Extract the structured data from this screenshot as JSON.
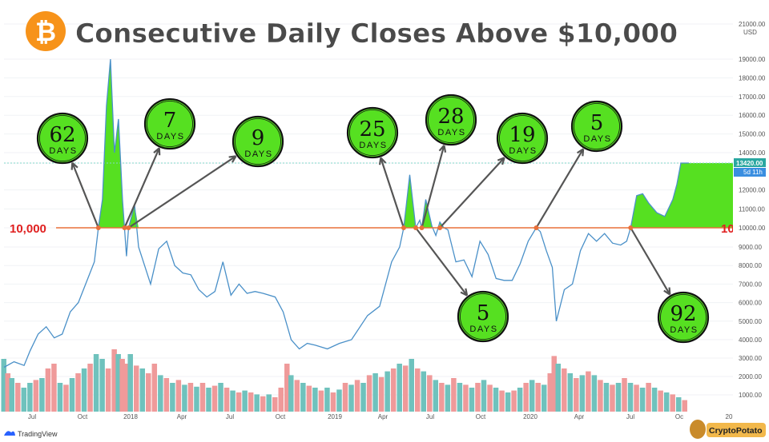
{
  "title": "Consecutive Daily Closes Above $10,000",
  "brand": {
    "bitcoin_symbol": "₿",
    "footer_left": "TradingView",
    "footer_right": "CryptoPotato"
  },
  "colors": {
    "price_line": "#4a90c8",
    "above_fill": "#56e021",
    "threshold_line": "#e8703a",
    "vol_up": "#6fc2bd",
    "vol_down": "#ef9a9a",
    "bubble": "#56e021",
    "threshold_label": "#e02020",
    "title": "#4a4a4a",
    "bitcoin_orange": "#f7931a"
  },
  "chart_data": {
    "type": "line",
    "xlabel": "",
    "ylabel": "",
    "x_ticks": [
      "Jul",
      "Oct",
      "2018",
      "Apr",
      "Jul",
      "Oct",
      "2019",
      "Apr",
      "Jul",
      "Oct",
      "2020",
      "Apr",
      "Jul",
      "Oc",
      "20"
    ],
    "y_ticks": [
      "21000.00 USD",
      "19000.00",
      "18000.00",
      "17000.00",
      "16000.00",
      "15000.00",
      "14000.00",
      "13420.00",
      "12000.00",
      "11000.00",
      "10000.00",
      "9000.00",
      "8000.00",
      "7000.00",
      "6000.00",
      "5000.00",
      "4000.00",
      "3000.00",
      "2000.00",
      "1000.00"
    ],
    "price_tag": {
      "value": "13420.00",
      "sub": "5d 11h"
    },
    "threshold": {
      "value": 10000,
      "label": "10,000"
    },
    "price_series": [
      [
        2017.45,
        2500
      ],
      [
        2017.5,
        2800
      ],
      [
        2017.55,
        2600
      ],
      [
        2017.58,
        3400
      ],
      [
        2017.62,
        4300
      ],
      [
        2017.66,
        4700
      ],
      [
        2017.7,
        4100
      ],
      [
        2017.74,
        4300
      ],
      [
        2017.78,
        5500
      ],
      [
        2017.82,
        6000
      ],
      [
        2017.86,
        7100
      ],
      [
        2017.9,
        8200
      ],
      [
        2017.92,
        10000
      ],
      [
        2017.94,
        11500
      ],
      [
        2017.96,
        16500
      ],
      [
        2017.98,
        19000
      ],
      [
        2018.0,
        14000
      ],
      [
        2018.02,
        15800
      ],
      [
        2018.04,
        11500
      ],
      [
        2018.05,
        10000
      ],
      [
        2018.06,
        8500
      ],
      [
        2018.07,
        10000
      ],
      [
        2018.1,
        11200
      ],
      [
        2018.12,
        9000
      ],
      [
        2018.15,
        8000
      ],
      [
        2018.18,
        7000
      ],
      [
        2018.22,
        8900
      ],
      [
        2018.26,
        9300
      ],
      [
        2018.3,
        8000
      ],
      [
        2018.34,
        7600
      ],
      [
        2018.38,
        7500
      ],
      [
        2018.42,
        6700
      ],
      [
        2018.46,
        6300
      ],
      [
        2018.5,
        6600
      ],
      [
        2018.54,
        8200
      ],
      [
        2018.58,
        6400
      ],
      [
        2018.62,
        7000
      ],
      [
        2018.66,
        6500
      ],
      [
        2018.7,
        6600
      ],
      [
        2018.74,
        6500
      ],
      [
        2018.8,
        6300
      ],
      [
        2018.84,
        5500
      ],
      [
        2018.88,
        4000
      ],
      [
        2018.92,
        3500
      ],
      [
        2018.96,
        3800
      ],
      [
        2019.0,
        3700
      ],
      [
        2019.06,
        3500
      ],
      [
        2019.12,
        3800
      ],
      [
        2019.18,
        4000
      ],
      [
        2019.26,
        5300
      ],
      [
        2019.32,
        5800
      ],
      [
        2019.38,
        8200
      ],
      [
        2019.42,
        9000
      ],
      [
        2019.44,
        10000
      ],
      [
        2019.47,
        12800
      ],
      [
        2019.5,
        10000
      ],
      [
        2019.52,
        10400
      ],
      [
        2019.53,
        10000
      ],
      [
        2019.55,
        11500
      ],
      [
        2019.58,
        10100
      ],
      [
        2019.6,
        9600
      ],
      [
        2019.62,
        10300
      ],
      [
        2019.64,
        10000
      ],
      [
        2019.66,
        9900
      ],
      [
        2019.7,
        8200
      ],
      [
        2019.74,
        8300
      ],
      [
        2019.78,
        7400
      ],
      [
        2019.82,
        9300
      ],
      [
        2019.86,
        8600
      ],
      [
        2019.9,
        7300
      ],
      [
        2019.94,
        7200
      ],
      [
        2019.98,
        7200
      ],
      [
        2020.02,
        8100
      ],
      [
        2020.06,
        9300
      ],
      [
        2020.1,
        10000
      ],
      [
        2020.12,
        9800
      ],
      [
        2020.15,
        8800
      ],
      [
        2020.18,
        7900
      ],
      [
        2020.2,
        5000
      ],
      [
        2020.24,
        6700
      ],
      [
        2020.28,
        7000
      ],
      [
        2020.32,
        8800
      ],
      [
        2020.36,
        9700
      ],
      [
        2020.4,
        9300
      ],
      [
        2020.44,
        9700
      ],
      [
        2020.48,
        9200
      ],
      [
        2020.52,
        9100
      ],
      [
        2020.55,
        9300
      ],
      [
        2020.57,
        10000
      ],
      [
        2020.6,
        11700
      ],
      [
        2020.63,
        11800
      ],
      [
        2020.66,
        11300
      ],
      [
        2020.7,
        10800
      ],
      [
        2020.74,
        10600
      ],
      [
        2020.78,
        11500
      ],
      [
        2020.8,
        12300
      ],
      [
        2020.82,
        13420
      ],
      [
        2020.86,
        13420
      ]
    ],
    "above_ranges": [
      [
        2017.92,
        2018.05
      ],
      [
        2018.07,
        2018.13
      ],
      [
        2019.44,
        2019.5
      ],
      [
        2019.53,
        2019.58
      ],
      [
        2019.62,
        2019.64
      ],
      [
        2020.1,
        2020.12
      ],
      [
        2020.57,
        2020.86
      ]
    ],
    "callouts": [
      {
        "days": "62",
        "label": "DAYS",
        "from": [
          2017.92,
          10000
        ]
      },
      {
        "days": "7",
        "label": "DAYS",
        "from": [
          2018.05,
          10000
        ]
      },
      {
        "days": "9",
        "label": "DAYS",
        "from": [
          2018.07,
          10000
        ]
      },
      {
        "days": "25",
        "label": "DAYS",
        "from": [
          2019.44,
          10000
        ]
      },
      {
        "days": "28",
        "label": "DAYS",
        "from": [
          2019.53,
          10000
        ]
      },
      {
        "days": "19",
        "label": "DAYS",
        "from": [
          2019.62,
          10000
        ]
      },
      {
        "days": "5",
        "label": "DAYS",
        "from": [
          2020.1,
          10000
        ]
      },
      {
        "days": "5",
        "label": "DAYS",
        "from": [
          2019.5,
          10000
        ]
      },
      {
        "days": "92",
        "label": "DAYS",
        "from": [
          2020.57,
          10000
        ]
      }
    ],
    "volume": [
      [
        2017.45,
        0.55,
        1
      ],
      [
        2017.47,
        0.4,
        0
      ],
      [
        2017.49,
        0.35,
        1
      ],
      [
        2017.52,
        0.3,
        0
      ],
      [
        2017.55,
        0.25,
        1
      ],
      [
        2017.58,
        0.3,
        1
      ],
      [
        2017.61,
        0.33,
        0
      ],
      [
        2017.64,
        0.35,
        1
      ],
      [
        2017.67,
        0.45,
        0
      ],
      [
        2017.7,
        0.5,
        0
      ],
      [
        2017.73,
        0.3,
        1
      ],
      [
        2017.76,
        0.28,
        0
      ],
      [
        2017.79,
        0.35,
        1
      ],
      [
        2017.82,
        0.4,
        0
      ],
      [
        2017.85,
        0.45,
        1
      ],
      [
        2017.88,
        0.5,
        0
      ],
      [
        2017.91,
        0.6,
        1
      ],
      [
        2017.94,
        0.55,
        1
      ],
      [
        2017.97,
        0.45,
        0
      ],
      [
        2018.0,
        0.65,
        0
      ],
      [
        2018.02,
        0.6,
        1
      ],
      [
        2018.04,
        0.55,
        0
      ],
      [
        2018.06,
        0.5,
        0
      ],
      [
        2018.08,
        0.6,
        1
      ],
      [
        2018.11,
        0.48,
        0
      ],
      [
        2018.14,
        0.45,
        1
      ],
      [
        2018.17,
        0.4,
        0
      ],
      [
        2018.2,
        0.5,
        0
      ],
      [
        2018.23,
        0.38,
        1
      ],
      [
        2018.26,
        0.35,
        0
      ],
      [
        2018.29,
        0.3,
        1
      ],
      [
        2018.32,
        0.33,
        0
      ],
      [
        2018.35,
        0.28,
        1
      ],
      [
        2018.38,
        0.3,
        0
      ],
      [
        2018.41,
        0.26,
        1
      ],
      [
        2018.44,
        0.3,
        0
      ],
      [
        2018.47,
        0.25,
        1
      ],
      [
        2018.5,
        0.27,
        0
      ],
      [
        2018.53,
        0.3,
        1
      ],
      [
        2018.56,
        0.25,
        0
      ],
      [
        2018.59,
        0.22,
        1
      ],
      [
        2018.62,
        0.2,
        0
      ],
      [
        2018.65,
        0.22,
        1
      ],
      [
        2018.68,
        0.2,
        0
      ],
      [
        2018.71,
        0.18,
        1
      ],
      [
        2018.74,
        0.16,
        0
      ],
      [
        2018.77,
        0.18,
        1
      ],
      [
        2018.8,
        0.15,
        0
      ],
      [
        2018.83,
        0.25,
        0
      ],
      [
        2018.86,
        0.5,
        0
      ],
      [
        2018.88,
        0.38,
        1
      ],
      [
        2018.91,
        0.33,
        0
      ],
      [
        2018.94,
        0.3,
        1
      ],
      [
        2018.97,
        0.27,
        0
      ],
      [
        2019.0,
        0.25,
        1
      ],
      [
        2019.03,
        0.22,
        0
      ],
      [
        2019.06,
        0.25,
        1
      ],
      [
        2019.09,
        0.2,
        0
      ],
      [
        2019.12,
        0.23,
        1
      ],
      [
        2019.15,
        0.3,
        0
      ],
      [
        2019.18,
        0.28,
        1
      ],
      [
        2019.21,
        0.33,
        0
      ],
      [
        2019.24,
        0.3,
        1
      ],
      [
        2019.27,
        0.38,
        0
      ],
      [
        2019.3,
        0.4,
        1
      ],
      [
        2019.33,
        0.36,
        0
      ],
      [
        2019.36,
        0.42,
        1
      ],
      [
        2019.39,
        0.45,
        0
      ],
      [
        2019.42,
        0.5,
        1
      ],
      [
        2019.45,
        0.48,
        0
      ],
      [
        2019.48,
        0.55,
        1
      ],
      [
        2019.51,
        0.45,
        0
      ],
      [
        2019.54,
        0.42,
        1
      ],
      [
        2019.57,
        0.38,
        0
      ],
      [
        2019.6,
        0.33,
        1
      ],
      [
        2019.63,
        0.3,
        0
      ],
      [
        2019.66,
        0.28,
        1
      ],
      [
        2019.69,
        0.35,
        0
      ],
      [
        2019.72,
        0.3,
        1
      ],
      [
        2019.75,
        0.28,
        0
      ],
      [
        2019.78,
        0.25,
        1
      ],
      [
        2019.81,
        0.3,
        0
      ],
      [
        2019.84,
        0.33,
        1
      ],
      [
        2019.87,
        0.28,
        0
      ],
      [
        2019.9,
        0.25,
        1
      ],
      [
        2019.93,
        0.22,
        0
      ],
      [
        2019.96,
        0.2,
        1
      ],
      [
        2019.99,
        0.22,
        0
      ],
      [
        2020.02,
        0.25,
        1
      ],
      [
        2020.05,
        0.3,
        0
      ],
      [
        2020.08,
        0.33,
        1
      ],
      [
        2020.11,
        0.3,
        0
      ],
      [
        2020.14,
        0.28,
        1
      ],
      [
        2020.17,
        0.4,
        0
      ],
      [
        2020.19,
        0.58,
        0
      ],
      [
        2020.21,
        0.5,
        1
      ],
      [
        2020.24,
        0.45,
        0
      ],
      [
        2020.27,
        0.4,
        1
      ],
      [
        2020.3,
        0.35,
        0
      ],
      [
        2020.33,
        0.38,
        1
      ],
      [
        2020.36,
        0.42,
        0
      ],
      [
        2020.39,
        0.38,
        1
      ],
      [
        2020.42,
        0.33,
        0
      ],
      [
        2020.45,
        0.3,
        1
      ],
      [
        2020.48,
        0.28,
        0
      ],
      [
        2020.51,
        0.3,
        1
      ],
      [
        2020.54,
        0.35,
        0
      ],
      [
        2020.57,
        0.3,
        1
      ],
      [
        2020.6,
        0.28,
        0
      ],
      [
        2020.63,
        0.25,
        1
      ],
      [
        2020.66,
        0.3,
        0
      ],
      [
        2020.69,
        0.25,
        1
      ],
      [
        2020.72,
        0.22,
        0
      ],
      [
        2020.75,
        0.2,
        1
      ],
      [
        2020.78,
        0.18,
        0
      ],
      [
        2020.81,
        0.15,
        1
      ],
      [
        2020.84,
        0.12,
        0
      ]
    ]
  }
}
